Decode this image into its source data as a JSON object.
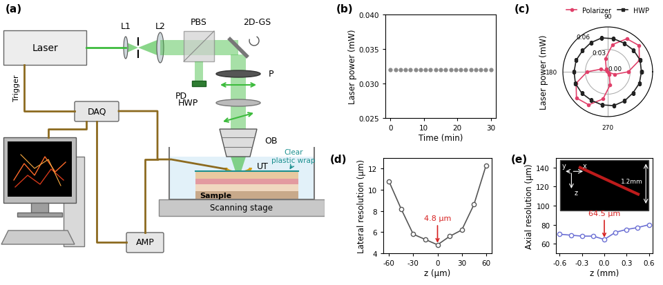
{
  "diagram": {
    "panel": "(a)",
    "labels": {
      "laser": "Laser",
      "trigger": "Trigger",
      "l1": "L1",
      "l2": "L2",
      "pbs": "PBS",
      "gs": "2D-GS",
      "pd": "PD",
      "p": "P",
      "hwp": "HWP",
      "ob": "OB",
      "ut": "UT",
      "daq": "DAQ",
      "amp": "AMP",
      "sample": "Sample",
      "wrap": "Clear\nplastic wrap",
      "stage": "Scanning stage"
    }
  },
  "chart_data": [
    {
      "panel": "(b)",
      "type": "scatter",
      "x": [
        0,
        1.5,
        3,
        4.5,
        6,
        7.5,
        9,
        10.5,
        12,
        13.5,
        15,
        16.5,
        18,
        19.5,
        21,
        22.5,
        24,
        25.5,
        27,
        28.5,
        30
      ],
      "values": [
        0.032,
        0.032,
        0.032,
        0.032,
        0.032,
        0.032,
        0.032,
        0.032,
        0.032,
        0.032,
        0.032,
        0.032,
        0.032,
        0.032,
        0.032,
        0.032,
        0.032,
        0.032,
        0.032,
        0.032,
        0.032
      ],
      "color": "#8a8a8a",
      "marker": "circle",
      "x_label": "Time (min)",
      "y_label": "Laser power (mW)",
      "xlim": [
        -1.5,
        31.5
      ],
      "ylim": [
        0.025,
        0.04
      ],
      "xticks": [
        0,
        10,
        20,
        30
      ],
      "yticks": [
        0.025,
        {
          "value": 0.03,
          "label": "0.030"
        },
        0.035,
        {
          "value": 0.04,
          "label": "0.040"
        }
      ]
    },
    {
      "panel": "(c)",
      "type": "polar",
      "x": [
        0,
        20,
        40,
        60,
        80,
        100,
        120,
        140,
        160,
        180,
        200,
        220,
        240,
        260,
        280,
        300,
        320,
        340
      ],
      "series": [
        {
          "name": "Polarizer",
          "color": "#e0406a",
          "marker": "circle",
          "values": [
            0.0275,
            0.045,
            0.0546,
            0.051,
            0.037,
            0.018,
            0.004,
            0.001,
            0.01,
            0.0275,
            0.045,
            0.0546,
            0.051,
            0.037,
            0.018,
            0.004,
            0.001,
            0.01
          ]
        },
        {
          "name": "HWP",
          "color": "#222222",
          "marker": "square",
          "values": [
            0.045,
            0.046,
            0.045,
            0.044,
            0.045,
            0.046,
            0.045,
            0.044,
            0.045,
            0.045,
            0.046,
            0.045,
            0.044,
            0.045,
            0.046,
            0.045,
            0.044,
            0.045
          ]
        }
      ],
      "y_label": "Laser power (mW)",
      "ylim": [
        0,
        0.06
      ],
      "yticks": [
        {
          "value": 0,
          "label": "0.00"
        },
        0.03,
        0.06
      ],
      "xticks": [
        90,
        180,
        270
      ],
      "legend": "top"
    },
    {
      "panel": "(d)",
      "type": "line",
      "x": [
        -60,
        -45,
        -30,
        -15,
        0,
        15,
        30,
        45,
        60
      ],
      "values": [
        10.8,
        8.2,
        5.8,
        5.3,
        4.8,
        5.6,
        6.2,
        8.6,
        12.3
      ],
      "color": "#555555",
      "marker": "circle",
      "x_label": "z (μm)",
      "y_label": "Lateral resolution (μm)",
      "xlim": [
        -67,
        67
      ],
      "ylim": [
        4,
        13
      ],
      "xticks": [
        -60,
        -30,
        0,
        30,
        60
      ],
      "yticks": [
        4,
        6,
        8,
        10,
        12
      ],
      "annotation": "4.8 μm"
    },
    {
      "panel": "(e)",
      "type": "line",
      "x": [
        -0.6,
        -0.45,
        -0.3,
        -0.15,
        0,
        0.15,
        0.3,
        0.45,
        0.6
      ],
      "values": [
        70,
        69,
        68,
        68,
        64.5,
        72,
        75,
        77,
        80
      ],
      "color": "#6b6fd4",
      "marker": "circle",
      "x_label": "z (mm)",
      "y_label": "Axial resolution (μm)",
      "xlim": [
        -0.65,
        0.65
      ],
      "ylim": [
        50,
        150
      ],
      "xticks": [
        -0.6,
        -0.3,
        {
          "value": 0,
          "label": "0.0"
        },
        0.3,
        0.6
      ],
      "yticks": [
        60,
        80,
        100,
        120,
        140
      ],
      "annotation": "64.5 μm",
      "inset_texts": {
        "x": "x",
        "y": "y",
        "z": "z",
        "size": "1.2mm"
      }
    }
  ]
}
